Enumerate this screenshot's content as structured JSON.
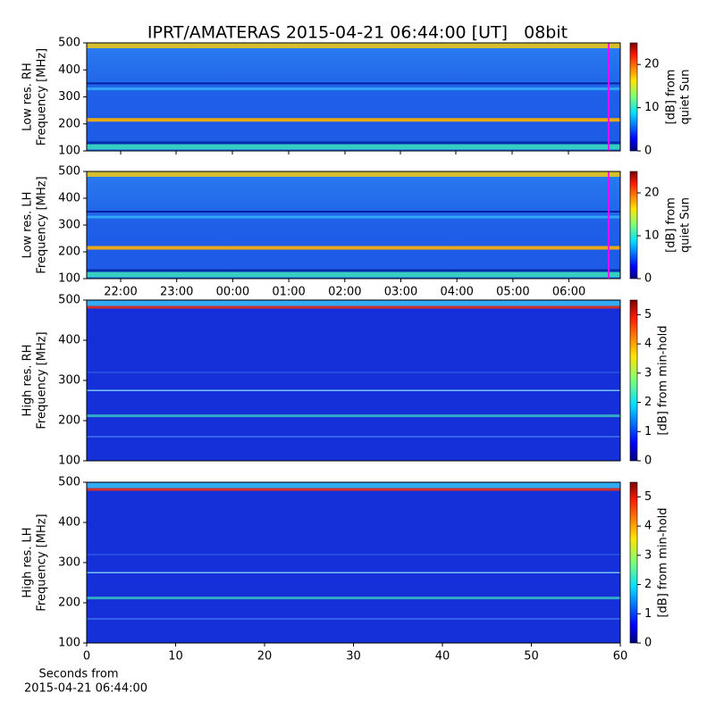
{
  "chart_data": [
    {
      "type": "heatmap",
      "title": "IPRT/AMATERAS 2015-04-21 06:44:00 [UT]   08bit",
      "ylabel": [
        "Low res. RH",
        "Frequency [MHz]"
      ],
      "ylim": [
        100,
        500
      ],
      "yticks": [
        100,
        200,
        300,
        400,
        500
      ],
      "clim": [
        0,
        25
      ],
      "cticks": [
        0,
        10,
        20
      ],
      "clabel": [
        "[dB] from",
        "quiet Sun"
      ]
    },
    {
      "type": "heatmap",
      "ylabel": [
        "Low res. LH",
        "Frequency [MHz]"
      ],
      "ylim": [
        100,
        500
      ],
      "yticks": [
        100,
        200,
        300,
        400,
        500
      ],
      "clim": [
        0,
        25
      ],
      "cticks": [
        0,
        10,
        20
      ],
      "clabel": [
        "[dB] from",
        "quiet Sun"
      ],
      "xticklabels": [
        "22:00",
        "23:00",
        "00:00",
        "01:00",
        "02:00",
        "03:00",
        "04:00",
        "05:00",
        "06:00"
      ]
    },
    {
      "type": "heatmap",
      "ylabel": [
        "High res. RH",
        "Frequency [MHz]"
      ],
      "ylim": [
        100,
        500
      ],
      "yticks": [
        100,
        200,
        300,
        400,
        500
      ],
      "clim": [
        0,
        5.5
      ],
      "cticks": [
        0,
        1,
        2,
        3,
        4,
        5
      ],
      "clabel": [
        "[dB] from min-hold"
      ]
    },
    {
      "type": "heatmap",
      "ylabel": [
        "High res. LH",
        "Frequency [MHz]"
      ],
      "ylim": [
        100,
        500
      ],
      "yticks": [
        100,
        200,
        300,
        400,
        500
      ],
      "clim": [
        0,
        5.5
      ],
      "cticks": [
        0,
        1,
        2,
        3,
        4,
        5
      ],
      "clabel": [
        "[dB] from min-hold"
      ],
      "xlim": [
        0,
        60
      ],
      "xticks": [
        0,
        10,
        20,
        30,
        40,
        50,
        60
      ],
      "xlabel": [
        "Seconds from",
        "2015-04-21 06:44:00"
      ]
    }
  ]
}
